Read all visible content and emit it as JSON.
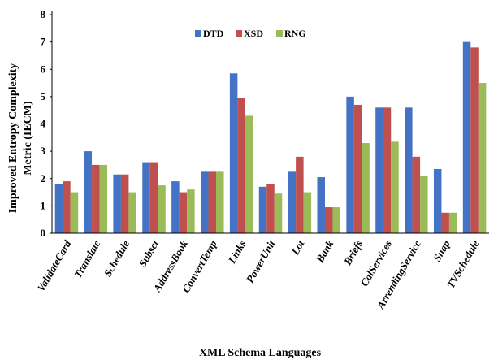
{
  "chart_data": {
    "type": "bar",
    "title": "",
    "ylabel_line1": "Improved Entropy Complexity",
    "ylabel_line2": "Metric (IECM)",
    "xlabel": "XML Schema Languages",
    "ylim": [
      0,
      8
    ],
    "yticks": [
      0,
      1,
      2,
      3,
      4,
      5,
      6,
      7,
      8
    ],
    "grid": false,
    "legend_position": "top-center",
    "categories": [
      "ValidateCard",
      "Translate",
      "Schedule",
      "Subset",
      "AddressBook",
      "ConvertTemp",
      "Links",
      "PowerUnit",
      "Lot",
      "Bank",
      "Briefs",
      "CalServices",
      "ArrendingService",
      "Snap",
      "TVSchedule"
    ],
    "series": [
      {
        "name": "DTD",
        "color": "#4472c4",
        "values": [
          1.8,
          3.0,
          2.15,
          2.6,
          1.9,
          2.25,
          5.85,
          1.7,
          2.25,
          2.05,
          5.0,
          4.6,
          4.6,
          2.35,
          7.0
        ]
      },
      {
        "name": "XSD",
        "color": "#c0504d",
        "values": [
          1.9,
          2.5,
          2.15,
          2.6,
          1.5,
          2.25,
          4.95,
          1.8,
          2.8,
          0.95,
          4.7,
          4.6,
          2.8,
          0.75,
          6.8
        ]
      },
      {
        "name": "RNG",
        "color": "#9bbb59",
        "values": [
          1.5,
          2.5,
          1.5,
          1.75,
          1.6,
          2.25,
          4.3,
          1.45,
          1.5,
          0.95,
          3.3,
          3.35,
          2.1,
          0.75,
          5.5
        ]
      }
    ]
  }
}
